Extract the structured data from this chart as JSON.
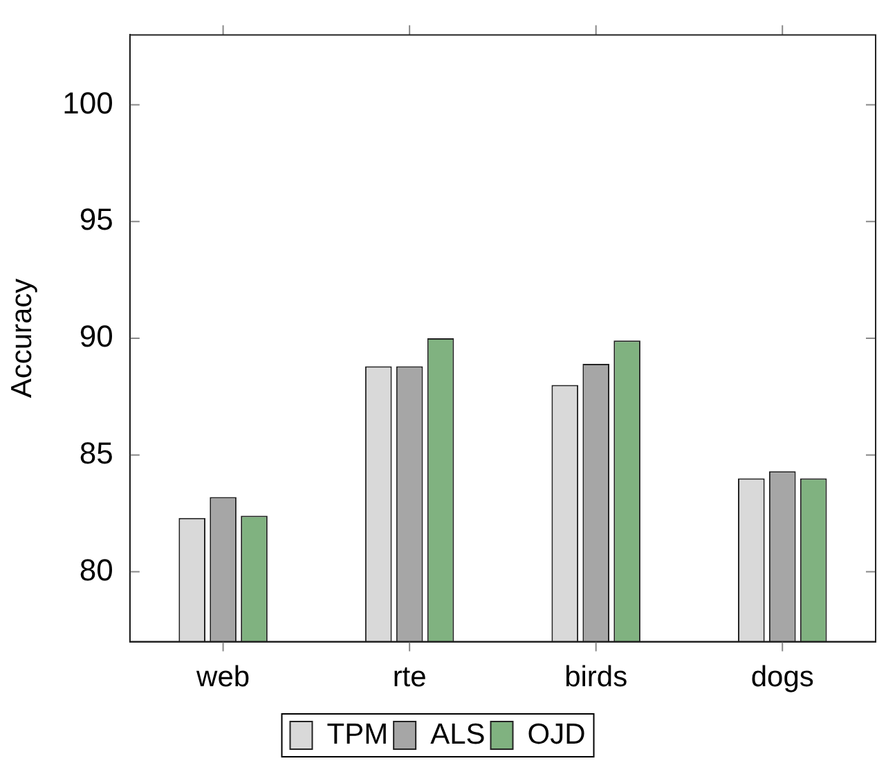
{
  "chart_data": {
    "type": "bar",
    "ylabel": "Accuracy",
    "categories": [
      "web",
      "rte",
      "birds",
      "dogs"
    ],
    "series": [
      {
        "name": "TPM",
        "color": "#d9d9d9",
        "values": [
          82.3,
          88.8,
          88.0,
          84.0
        ]
      },
      {
        "name": "ALS",
        "color": "#a6a6a6",
        "values": [
          83.2,
          88.8,
          88.9,
          84.3
        ]
      },
      {
        "name": "OJD",
        "color": "#80b280",
        "values": [
          82.4,
          90.0,
          89.9,
          84.0
        ]
      }
    ],
    "ylim": [
      77,
      103
    ],
    "yticks": [
      80,
      85,
      90,
      95,
      100
    ],
    "grid": false,
    "legend": "bottom"
  }
}
